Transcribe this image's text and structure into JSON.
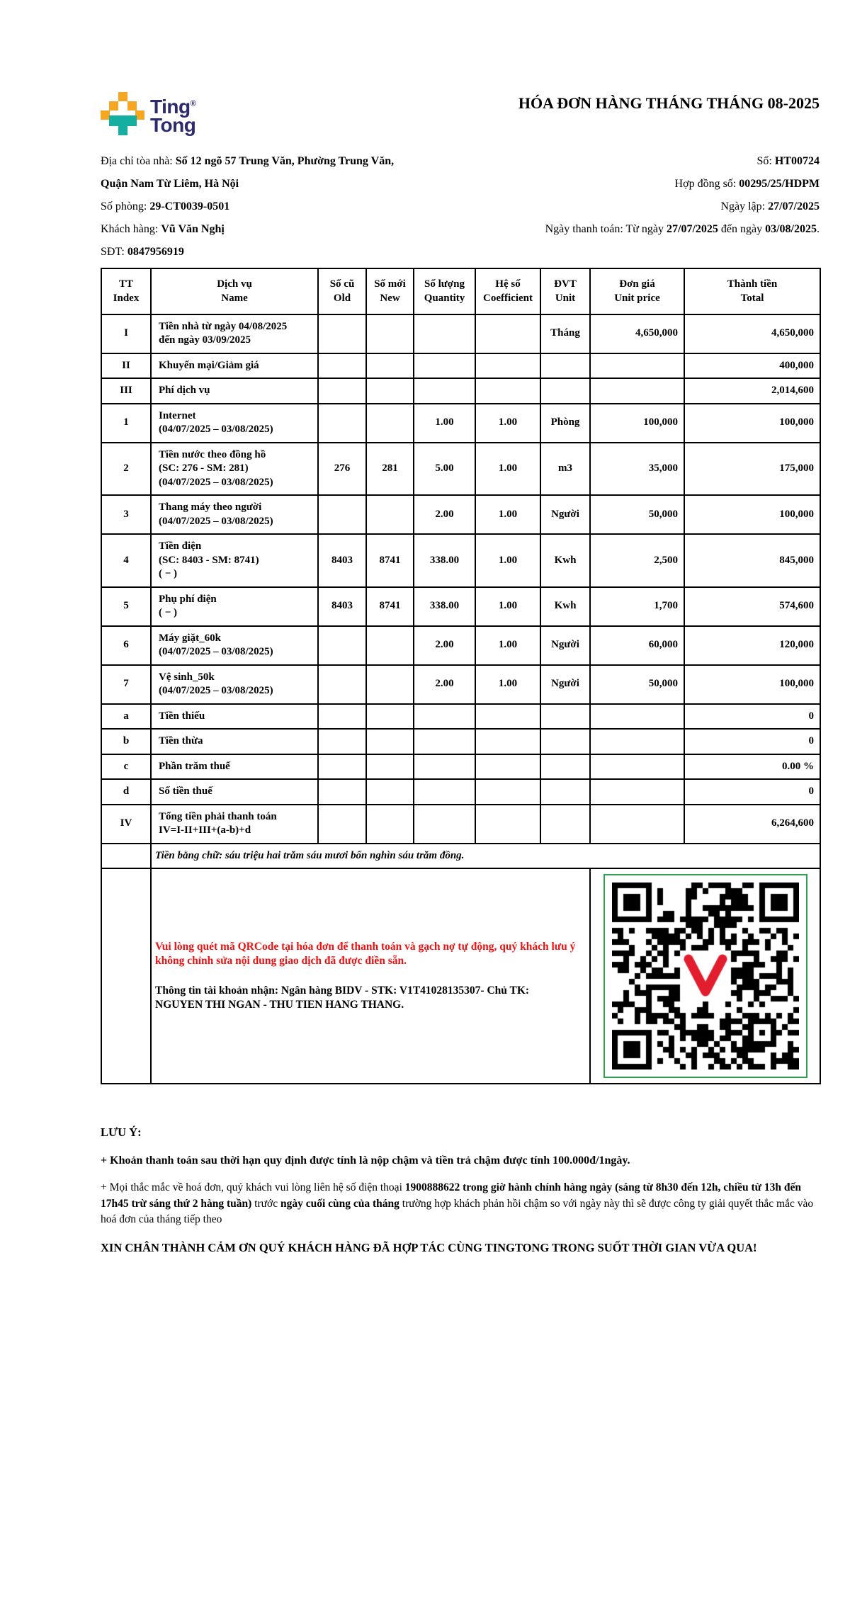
{
  "colors": {
    "brand_navy": "#2b2b6e",
    "brand_yellow": "#f5a623",
    "brand_teal": "#14afa0",
    "notice_red": "#ee1111",
    "qr_border_green": "#2e9e50"
  },
  "brand": {
    "line1": "Ting",
    "registered": "®",
    "line2": "Tong"
  },
  "title": "HÓA ĐƠN HÀNG THÁNG THÁNG 08-2025",
  "info": {
    "left": [
      {
        "label": "Địa chỉ tòa nhà: ",
        "value": "Số 12 ngõ 57 Trung Văn, Phường Trung Văn,"
      },
      {
        "label": "",
        "value": "Quận Nam Từ Liêm, Hà Nội"
      },
      {
        "label": "Số phòng: ",
        "value": "29-CT0039-0501"
      },
      {
        "label": "Khách hàng: ",
        "value": "Vũ Văn Nghị"
      },
      {
        "label": "SĐT: ",
        "value": "0847956919"
      }
    ],
    "right": [
      {
        "label": "Số: ",
        "value": "HT00724"
      },
      {
        "label": "Hợp đồng số: ",
        "value": "00295/25/HDPM"
      },
      {
        "label": "Ngày lập: ",
        "value": "27/07/2025"
      },
      {
        "label": "Ngày thanh toán: Từ ngày ",
        "value": "27/07/2025",
        "label2": " đến ngày ",
        "value2": "03/08/2025",
        "suffix": "."
      }
    ]
  },
  "table": {
    "header": {
      "index": [
        "TT",
        "Index"
      ],
      "name": [
        "Dịch vụ",
        "Name"
      ],
      "old": [
        "Số cũ",
        "Old"
      ],
      "new": [
        "Số mới",
        "New"
      ],
      "qty": [
        "Số lượng",
        "Quantity"
      ],
      "coeff": [
        "Hệ số",
        "Coefficient"
      ],
      "unit": [
        "ĐVT",
        "Unit"
      ],
      "price": [
        "Đơn giá",
        "Unit price"
      ],
      "total": [
        "Thành tiền",
        "Total"
      ]
    },
    "rows": [
      {
        "index": "I",
        "name_lines": [
          "Tiền nhà từ ngày 04/08/2025",
          "đến ngày 03/09/2025"
        ],
        "old": "",
        "new": "",
        "qty": "",
        "coeff": "",
        "unit": "Tháng",
        "price": "4,650,000",
        "total": "4,650,000"
      },
      {
        "index": "II",
        "name_lines": [
          "Khuyến mại/Giảm giá"
        ],
        "old": "",
        "new": "",
        "qty": "",
        "coeff": "",
        "unit": "",
        "price": "",
        "total": "400,000"
      },
      {
        "index": "III",
        "name_lines": [
          "Phí dịch vụ"
        ],
        "old": "",
        "new": "",
        "qty": "",
        "coeff": "",
        "unit": "",
        "price": "",
        "total": "2,014,600"
      },
      {
        "index": "1",
        "name_lines": [
          "Internet",
          "(04/07/2025 – 03/08/2025)"
        ],
        "old": "",
        "new": "",
        "qty": "1.00",
        "coeff": "1.00",
        "unit": "Phòng",
        "price": "100,000",
        "total": "100,000"
      },
      {
        "index": "2",
        "name_lines": [
          "Tiền nước theo đồng hồ",
          "(SC: 276 - SM: 281)",
          "(04/07/2025 – 03/08/2025)"
        ],
        "old": "276",
        "new": "281",
        "qty": "5.00",
        "coeff": "1.00",
        "unit": "m3",
        "price": "35,000",
        "total": "175,000"
      },
      {
        "index": "3",
        "name_lines": [
          "Thang máy theo người",
          "(04/07/2025 – 03/08/2025)"
        ],
        "old": "",
        "new": "",
        "qty": "2.00",
        "coeff": "1.00",
        "unit": "Người",
        "price": "50,000",
        "total": "100,000"
      },
      {
        "index": "4",
        "name_lines": [
          "Tiền điện",
          "(SC: 8403 - SM: 8741)",
          "( − )"
        ],
        "old": "8403",
        "new": "8741",
        "qty": "338.00",
        "coeff": "1.00",
        "unit": "Kwh",
        "price": "2,500",
        "total": "845,000"
      },
      {
        "index": "5",
        "name_lines": [
          "Phụ phí điện",
          "( − )"
        ],
        "old": "8403",
        "new": "8741",
        "qty": "338.00",
        "coeff": "1.00",
        "unit": "Kwh",
        "price": "1,700",
        "total": "574,600"
      },
      {
        "index": "6",
        "name_lines": [
          "Máy giặt_60k",
          "(04/07/2025 – 03/08/2025)"
        ],
        "old": "",
        "new": "",
        "qty": "2.00",
        "coeff": "1.00",
        "unit": "Người",
        "price": "60,000",
        "total": "120,000"
      },
      {
        "index": "7",
        "name_lines": [
          "Vệ sinh_50k",
          "(04/07/2025 – 03/08/2025)"
        ],
        "old": "",
        "new": "",
        "qty": "2.00",
        "coeff": "1.00",
        "unit": "Người",
        "price": "50,000",
        "total": "100,000"
      },
      {
        "index": "a",
        "name_lines": [
          "Tiền thiếu"
        ],
        "old": "",
        "new": "",
        "qty": "",
        "coeff": "",
        "unit": "",
        "price": "",
        "total": "0"
      },
      {
        "index": "b",
        "name_lines": [
          "Tiền thừa"
        ],
        "old": "",
        "new": "",
        "qty": "",
        "coeff": "",
        "unit": "",
        "price": "",
        "total": "0"
      },
      {
        "index": "c",
        "name_lines": [
          "Phần trăm thuế"
        ],
        "old": "",
        "new": "",
        "qty": "",
        "coeff": "",
        "unit": "",
        "price": "",
        "total": "0.00 %"
      },
      {
        "index": "d",
        "name_lines": [
          "Số tiền thuế"
        ],
        "old": "",
        "new": "",
        "qty": "",
        "coeff": "",
        "unit": "",
        "price": "",
        "total": "0"
      },
      {
        "index": "IV",
        "name_lines": [
          "Tổng tiền phải thanh toán",
          "IV=I-II+III+(a-b)+d"
        ],
        "old": "",
        "new": "",
        "qty": "",
        "coeff": "",
        "unit": "",
        "price": "",
        "total": "6,264,600"
      }
    ]
  },
  "amount_in_words": {
    "label": "Tiền bằng chữ: ",
    "value": "sáu triệu hai trăm sáu mươi bốn nghìn sáu trăm đồng."
  },
  "payment": {
    "notice": "Vui lòng quét mã QRCode tại hóa đơn để thanh toán và gạch nợ tự động, quý khách lưu ý không chỉnh sửa nội dung giao dịch đã được điền sẵn.",
    "account": {
      "s1": "Thông tin tài khoản nhận: Ngân hàng BIDV - STK: ",
      "s2": "V1T41028135307",
      "s3": "- Chủ TK: ",
      "s4": "NGUYEN THI NGAN - THU TIEN HANG THANG",
      "s5": "."
    }
  },
  "footer": {
    "heading": "LƯU Ý:",
    "note1": "+ Khoản thanh toán sau thời hạn quy định được tính là nộp chậm và tiền trả chậm được tính 100.000đ/1ngày.",
    "note2": {
      "s1": "+ Mọi thắc mắc về hoá đơn, quý khách vui lòng liên hệ số điện thoại ",
      "s2": "1900888622 trong giờ hành chính hàng ngày (sáng từ 8h30 đến 12h, chiều từ 13h đến 17h45 trừ sáng thứ 2 hàng tuần)",
      "s3": " trước ",
      "s4": "ngày cuối cùng của tháng",
      "s5": " trường hợp khách phản hồi chậm so với ngày này thì sẽ được công ty giải quyết thắc mắc vào hoá đơn của tháng tiếp theo"
    },
    "thanks": "XIN CHÂN THÀNH CẢM ƠN QUÝ KHÁCH HÀNG ĐÃ HỢP TÁC CÙNG TINGTONG TRONG SUỐT THỜI GIAN VỪA QUA!"
  }
}
